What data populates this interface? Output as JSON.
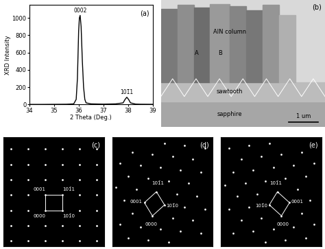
{
  "chart_data": {
    "type": "line",
    "panel": "(a)",
    "x": [
      34.0,
      34.5,
      35.0,
      35.5,
      35.8,
      35.9,
      35.95,
      36.0,
      36.03,
      36.06,
      36.1,
      36.15,
      36.2,
      36.25,
      36.3,
      36.5,
      37.0,
      37.5,
      37.8,
      37.88,
      37.95,
      38.02,
      38.1,
      38.3,
      38.5,
      39.0
    ],
    "values": [
      2,
      2,
      3,
      4,
      8,
      60,
      300,
      850,
      1000,
      1030,
      900,
      500,
      200,
      60,
      20,
      8,
      5,
      8,
      20,
      60,
      85,
      60,
      20,
      6,
      4,
      3
    ],
    "color": "#000000",
    "xlabel": "2 Theta (Deg.)",
    "ylabel": "XRD Intensity",
    "xlim": [
      34,
      39
    ],
    "ylim": [
      0,
      1150
    ],
    "xticks": [
      34,
      35,
      36,
      37,
      38,
      39
    ],
    "yticks": [
      0,
      200,
      400,
      600,
      800,
      1000
    ],
    "annotations": [
      {
        "text": "0002",
        "x": 36.06
      },
      {
        "text": "101̄1",
        "x": 37.95
      }
    ]
  },
  "tem_image": {
    "panel": "(b)",
    "column": "AlN column",
    "grain_a": "A",
    "grain_b": "B",
    "interlayer": "sawtooth",
    "substrate": "sapphire",
    "scale_bar": "1 um"
  },
  "diffraction_patterns": [
    {
      "panel": "(c)",
      "origin": "0000",
      "c_axis": "0001",
      "prism": "101̄0",
      "pyramid": "101̄1"
    },
    {
      "panel": "(d)",
      "origin": "0000",
      "c_axis": "0001",
      "prism": "101̄0",
      "pyramid": "101̄1"
    },
    {
      "panel": "(e)",
      "origin": "0000",
      "c_axis": "0001",
      "prism": "101̄0",
      "pyramid": "101̄1"
    }
  ]
}
